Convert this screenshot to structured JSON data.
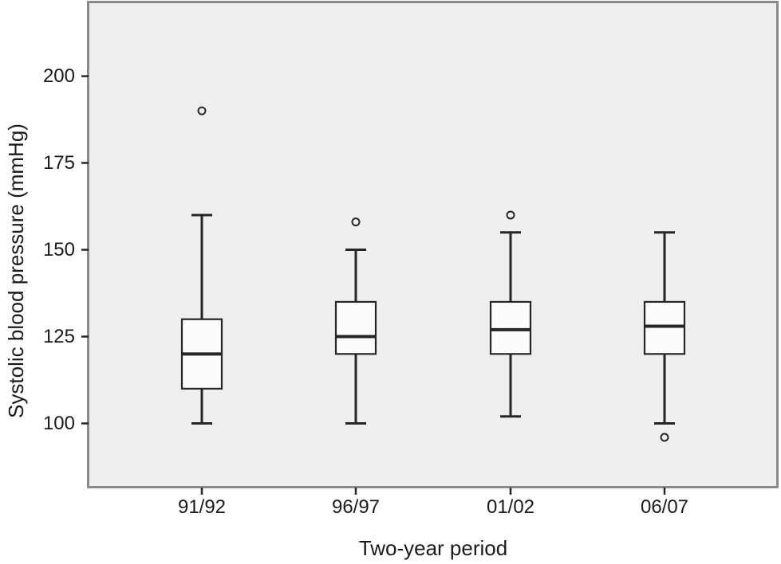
{
  "chart_data": {
    "type": "boxplot",
    "title": "",
    "xlabel": "Two-year period",
    "ylabel": "Systolic blood pressure (mmHg)",
    "categories": [
      "91/92",
      "96/97",
      "01/02",
      "06/07"
    ],
    "yticks": [
      200,
      175,
      150,
      125,
      100
    ],
    "ylim": [
      82,
      221
    ],
    "grid": false,
    "legend": "none",
    "series": [
      {
        "category": "91/92",
        "whisker_low": 100,
        "q1": 110,
        "median": 120,
        "q3": 130,
        "whisker_high": 160,
        "outliers": [
          190
        ]
      },
      {
        "category": "96/97",
        "whisker_low": 100,
        "q1": 120,
        "median": 125,
        "q3": 135,
        "whisker_high": 150,
        "outliers": [
          158
        ]
      },
      {
        "category": "01/02",
        "whisker_low": 102,
        "q1": 120,
        "median": 127,
        "q3": 135,
        "whisker_high": 155,
        "outliers": [
          160
        ]
      },
      {
        "category": "06/07",
        "whisker_low": 100,
        "q1": 120,
        "median": 128,
        "q3": 135,
        "whisker_high": 155,
        "outliers": [
          96
        ]
      }
    ],
    "colors": {
      "outer_bg": "#ffffff",
      "plot_bg": "#f0efee",
      "frame": "#8a8a8a",
      "line": "#262626",
      "box_fill": "#fcfcfc",
      "text": "#1a1a1a"
    }
  }
}
